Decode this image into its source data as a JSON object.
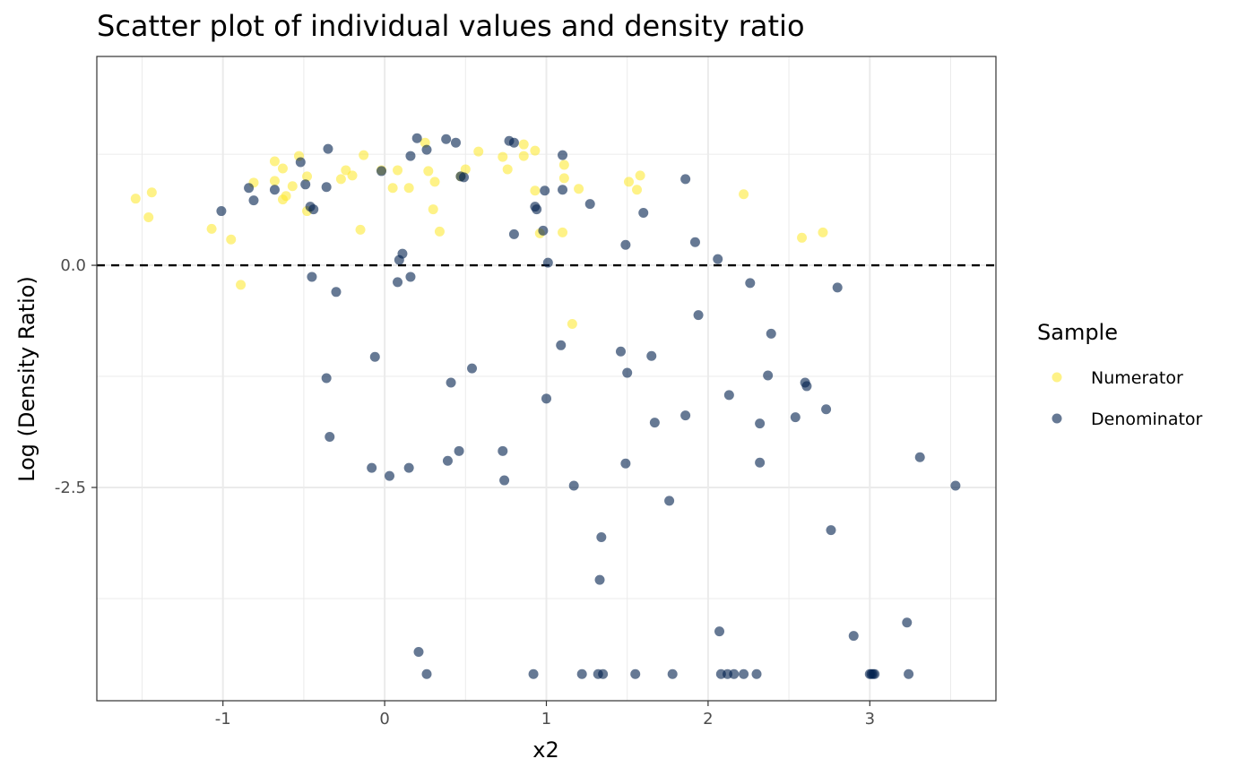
{
  "chart_data": {
    "type": "scatter",
    "title": "Scatter plot of individual values and density ratio",
    "xlabel": "x2",
    "ylabel": "Log (Density Ratio)",
    "xlim": [
      -1.78,
      3.78
    ],
    "ylim": [
      -4.9,
      2.35
    ],
    "x_ticks": [
      -1,
      0,
      1,
      2,
      3
    ],
    "y_ticks": [
      0,
      -2.5
    ],
    "x_tick_labels": [
      "-1",
      "0",
      "1",
      "2",
      "3"
    ],
    "y_tick_labels": [
      "0.0",
      "-2.5"
    ],
    "reference_line": {
      "y": 0,
      "style": "dashed"
    },
    "grid": true,
    "legend": {
      "title": "Sample",
      "position": "right"
    },
    "series": [
      {
        "name": "Numerator",
        "color": "#FDE725",
        "points": [
          [
            -1.54,
            0.75
          ],
          [
            -1.44,
            0.82
          ],
          [
            -1.46,
            0.54
          ],
          [
            -1.07,
            0.41
          ],
          [
            -0.95,
            0.29
          ],
          [
            -0.89,
            -0.22
          ],
          [
            -0.81,
            0.93
          ],
          [
            -0.68,
            1.17
          ],
          [
            -0.68,
            0.95
          ],
          [
            -0.63,
            1.09
          ],
          [
            -0.63,
            0.74
          ],
          [
            -0.61,
            0.78
          ],
          [
            -0.57,
            0.89
          ],
          [
            -0.53,
            1.23
          ],
          [
            -0.48,
            1.0
          ],
          [
            -0.48,
            0.61
          ],
          [
            -0.27,
            0.97
          ],
          [
            -0.24,
            1.07
          ],
          [
            -0.2,
            1.01
          ],
          [
            -0.15,
            0.4
          ],
          [
            -0.13,
            1.24
          ],
          [
            -0.02,
            1.07
          ],
          [
            0.05,
            0.87
          ],
          [
            0.08,
            1.07
          ],
          [
            0.15,
            0.87
          ],
          [
            0.25,
            1.38
          ],
          [
            0.27,
            1.06
          ],
          [
            0.3,
            0.63
          ],
          [
            0.31,
            0.94
          ],
          [
            0.34,
            0.38
          ],
          [
            0.47,
            1.0
          ],
          [
            0.5,
            1.08
          ],
          [
            0.58,
            1.28
          ],
          [
            0.73,
            1.22
          ],
          [
            0.76,
            1.08
          ],
          [
            0.86,
            1.23
          ],
          [
            0.86,
            1.36
          ],
          [
            0.93,
            1.29
          ],
          [
            0.93,
            0.84
          ],
          [
            0.96,
            0.36
          ],
          [
            1.1,
            0.37
          ],
          [
            1.11,
            0.98
          ],
          [
            1.11,
            1.13
          ],
          [
            1.16,
            -0.66
          ],
          [
            1.2,
            0.86
          ],
          [
            1.51,
            0.94
          ],
          [
            1.56,
            0.85
          ],
          [
            1.58,
            1.01
          ],
          [
            2.22,
            0.8
          ],
          [
            2.58,
            0.31
          ],
          [
            2.71,
            0.37
          ]
        ]
      },
      {
        "name": "Denominator",
        "color": "#00204D",
        "points": [
          [
            -1.01,
            0.61
          ],
          [
            -0.84,
            0.87
          ],
          [
            -0.81,
            0.73
          ],
          [
            -0.68,
            0.85
          ],
          [
            -0.52,
            1.16
          ],
          [
            -0.49,
            0.91
          ],
          [
            -0.46,
            0.66
          ],
          [
            -0.44,
            0.63
          ],
          [
            -0.45,
            -0.13
          ],
          [
            -0.36,
            0.88
          ],
          [
            -0.35,
            1.31
          ],
          [
            -0.36,
            -1.27
          ],
          [
            -0.34,
            -1.93
          ],
          [
            -0.3,
            -0.3
          ],
          [
            -0.08,
            -2.28
          ],
          [
            -0.06,
            -1.03
          ],
          [
            -0.02,
            1.06
          ],
          [
            0.03,
            -2.37
          ],
          [
            0.08,
            -0.19
          ],
          [
            0.09,
            0.06
          ],
          [
            0.11,
            0.13
          ],
          [
            0.15,
            -2.28
          ],
          [
            0.16,
            1.23
          ],
          [
            0.16,
            -0.13
          ],
          [
            0.2,
            1.43
          ],
          [
            0.21,
            -4.35
          ],
          [
            0.26,
            -4.6
          ],
          [
            0.26,
            1.3
          ],
          [
            0.38,
            1.42
          ],
          [
            0.39,
            -2.2
          ],
          [
            0.41,
            -1.32
          ],
          [
            0.44,
            1.38
          ],
          [
            0.47,
            1.0
          ],
          [
            0.46,
            -2.09
          ],
          [
            0.49,
            0.99
          ],
          [
            0.54,
            -1.16
          ],
          [
            0.73,
            -2.09
          ],
          [
            0.74,
            -2.42
          ],
          [
            0.77,
            1.4
          ],
          [
            0.8,
            1.38
          ],
          [
            0.8,
            0.35
          ],
          [
            0.92,
            -4.6
          ],
          [
            0.93,
            0.66
          ],
          [
            0.94,
            0.63
          ],
          [
            0.98,
            0.39
          ],
          [
            0.99,
            0.84
          ],
          [
            1.0,
            -1.5
          ],
          [
            1.01,
            0.03
          ],
          [
            1.09,
            -0.9
          ],
          [
            1.1,
            0.85
          ],
          [
            1.1,
            1.24
          ],
          [
            1.17,
            -2.48
          ],
          [
            1.22,
            -4.6
          ],
          [
            1.27,
            0.69
          ],
          [
            1.32,
            -4.6
          ],
          [
            1.33,
            -3.54
          ],
          [
            1.34,
            -3.06
          ],
          [
            1.35,
            -4.6
          ],
          [
            1.46,
            -0.97
          ],
          [
            1.49,
            0.23
          ],
          [
            1.49,
            -2.23
          ],
          [
            1.5,
            -1.21
          ],
          [
            1.55,
            -4.6
          ],
          [
            1.6,
            0.59
          ],
          [
            1.65,
            -1.02
          ],
          [
            1.67,
            -1.77
          ],
          [
            1.76,
            -2.65
          ],
          [
            1.78,
            -4.6
          ],
          [
            1.86,
            0.97
          ],
          [
            1.86,
            -1.69
          ],
          [
            1.92,
            0.26
          ],
          [
            1.94,
            -0.56
          ],
          [
            2.06,
            0.07
          ],
          [
            2.07,
            -4.12
          ],
          [
            2.08,
            -4.6
          ],
          [
            2.12,
            -4.6
          ],
          [
            2.13,
            -1.46
          ],
          [
            2.16,
            -4.6
          ],
          [
            2.22,
            -4.6
          ],
          [
            2.26,
            -0.2
          ],
          [
            2.3,
            -4.6
          ],
          [
            2.32,
            -1.78
          ],
          [
            2.32,
            -2.22
          ],
          [
            2.37,
            -1.24
          ],
          [
            2.39,
            -0.77
          ],
          [
            2.54,
            -1.71
          ],
          [
            2.6,
            -1.32
          ],
          [
            2.61,
            -1.36
          ],
          [
            2.73,
            -1.62
          ],
          [
            2.76,
            -2.98
          ],
          [
            2.8,
            -0.25
          ],
          [
            2.9,
            -4.17
          ],
          [
            3.0,
            -4.6
          ],
          [
            3.01,
            -4.6
          ],
          [
            3.02,
            -4.6
          ],
          [
            3.03,
            -4.6
          ],
          [
            3.23,
            -4.02
          ],
          [
            3.24,
            -4.6
          ],
          [
            3.31,
            -2.16
          ],
          [
            3.53,
            -2.48
          ]
        ]
      }
    ]
  }
}
